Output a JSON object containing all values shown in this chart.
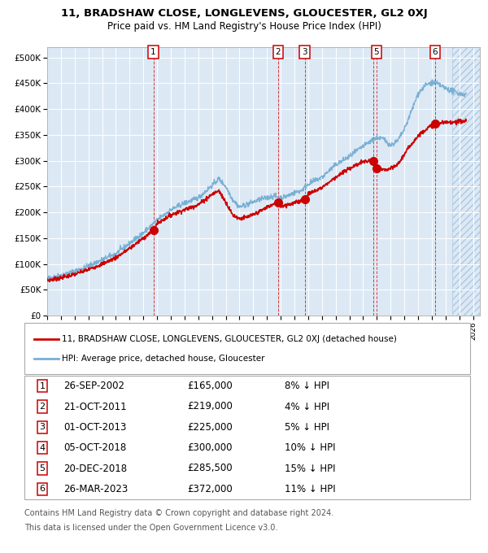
{
  "title": "11, BRADSHAW CLOSE, LONGLEVENS, GLOUCESTER, GL2 0XJ",
  "subtitle": "Price paid vs. HM Land Registry's House Price Index (HPI)",
  "legend_red": "11, BRADSHAW CLOSE, LONGLEVENS, GLOUCESTER, GL2 0XJ (detached house)",
  "legend_blue": "HPI: Average price, detached house, Gloucester",
  "footer1": "Contains HM Land Registry data © Crown copyright and database right 2024.",
  "footer2": "This data is licensed under the Open Government Licence v3.0.",
  "plot_bg": "#dce9f5",
  "red_color": "#cc0000",
  "blue_color": "#7ab0d4",
  "transactions": [
    {
      "num": 1,
      "date_str": "26-SEP-2002",
      "date_x": 2002.73,
      "price": 165000,
      "pct": "8%",
      "dir": "↓",
      "show_box": true
    },
    {
      "num": 2,
      "date_str": "21-OCT-2011",
      "date_x": 2011.8,
      "price": 219000,
      "pct": "4%",
      "dir": "↓",
      "show_box": true
    },
    {
      "num": 3,
      "date_str": "01-OCT-2013",
      "date_x": 2013.75,
      "price": 225000,
      "pct": "5%",
      "dir": "↓",
      "show_box": true
    },
    {
      "num": 4,
      "date_str": "05-OCT-2018",
      "date_x": 2018.76,
      "price": 300000,
      "pct": "10%",
      "dir": "↓",
      "show_box": false
    },
    {
      "num": 5,
      "date_str": "20-DEC-2018",
      "date_x": 2018.97,
      "price": 285500,
      "pct": "15%",
      "dir": "↓",
      "show_box": true
    },
    {
      "num": 6,
      "date_str": "26-MAR-2023",
      "date_x": 2023.23,
      "price": 372000,
      "pct": "11%",
      "dir": "↓",
      "show_box": true
    }
  ],
  "xlim": [
    1995.0,
    2026.5
  ],
  "ylim": [
    0,
    520000
  ],
  "yticks": [
    0,
    50000,
    100000,
    150000,
    200000,
    250000,
    300000,
    350000,
    400000,
    450000,
    500000
  ],
  "ytick_labels": [
    "£0",
    "£50K",
    "£100K",
    "£150K",
    "£200K",
    "£250K",
    "£300K",
    "£350K",
    "£400K",
    "£450K",
    "£500K"
  ],
  "xticks": [
    1995,
    1996,
    1997,
    1998,
    1999,
    2000,
    2001,
    2002,
    2003,
    2004,
    2005,
    2006,
    2007,
    2008,
    2009,
    2010,
    2011,
    2012,
    2013,
    2014,
    2015,
    2016,
    2017,
    2018,
    2019,
    2020,
    2021,
    2022,
    2023,
    2024,
    2025,
    2026
  ],
  "hatch_start": 2024.5
}
